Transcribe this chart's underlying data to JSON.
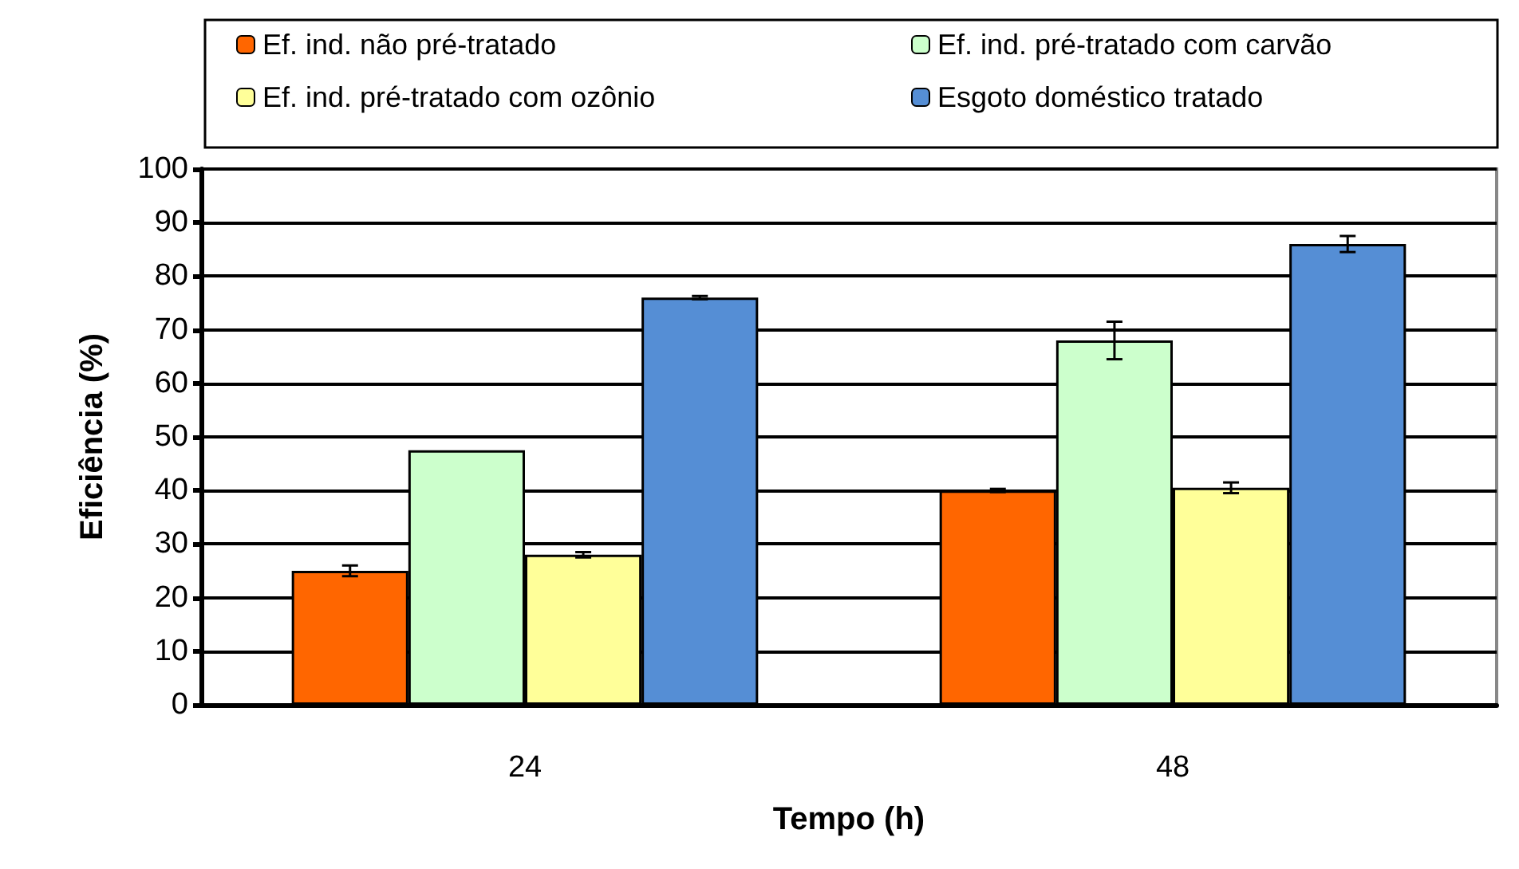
{
  "chart_data": {
    "type": "bar",
    "xlabel": "Tempo (h)",
    "ylabel": "Eficiência (%)",
    "categories": [
      "24",
      "48"
    ],
    "series": [
      {
        "name": "Ef. ind. não pré-tratado",
        "color": "#ff6600",
        "values": [
          25,
          40
        ],
        "errors": [
          1,
          0.3
        ]
      },
      {
        "name": "Ef. ind. pré-tratado com carvão",
        "color": "#ccffcc",
        "values": [
          47.5,
          68
        ],
        "errors": [
          null,
          3.5
        ]
      },
      {
        "name": "Ef. ind. pré-tratado com ozônio",
        "color": "#ffff99",
        "values": [
          28,
          40.5
        ],
        "errors": [
          0.5,
          1
        ]
      },
      {
        "name": "Esgoto doméstico tratado",
        "color": "#558ed5",
        "values": [
          76,
          86
        ],
        "errors": [
          0.3,
          1.5
        ]
      }
    ],
    "ylim": [
      0,
      100
    ],
    "yticks": [
      0,
      10,
      20,
      30,
      40,
      50,
      60,
      70,
      80,
      90,
      100
    ],
    "grid": "y",
    "legend": "top"
  }
}
